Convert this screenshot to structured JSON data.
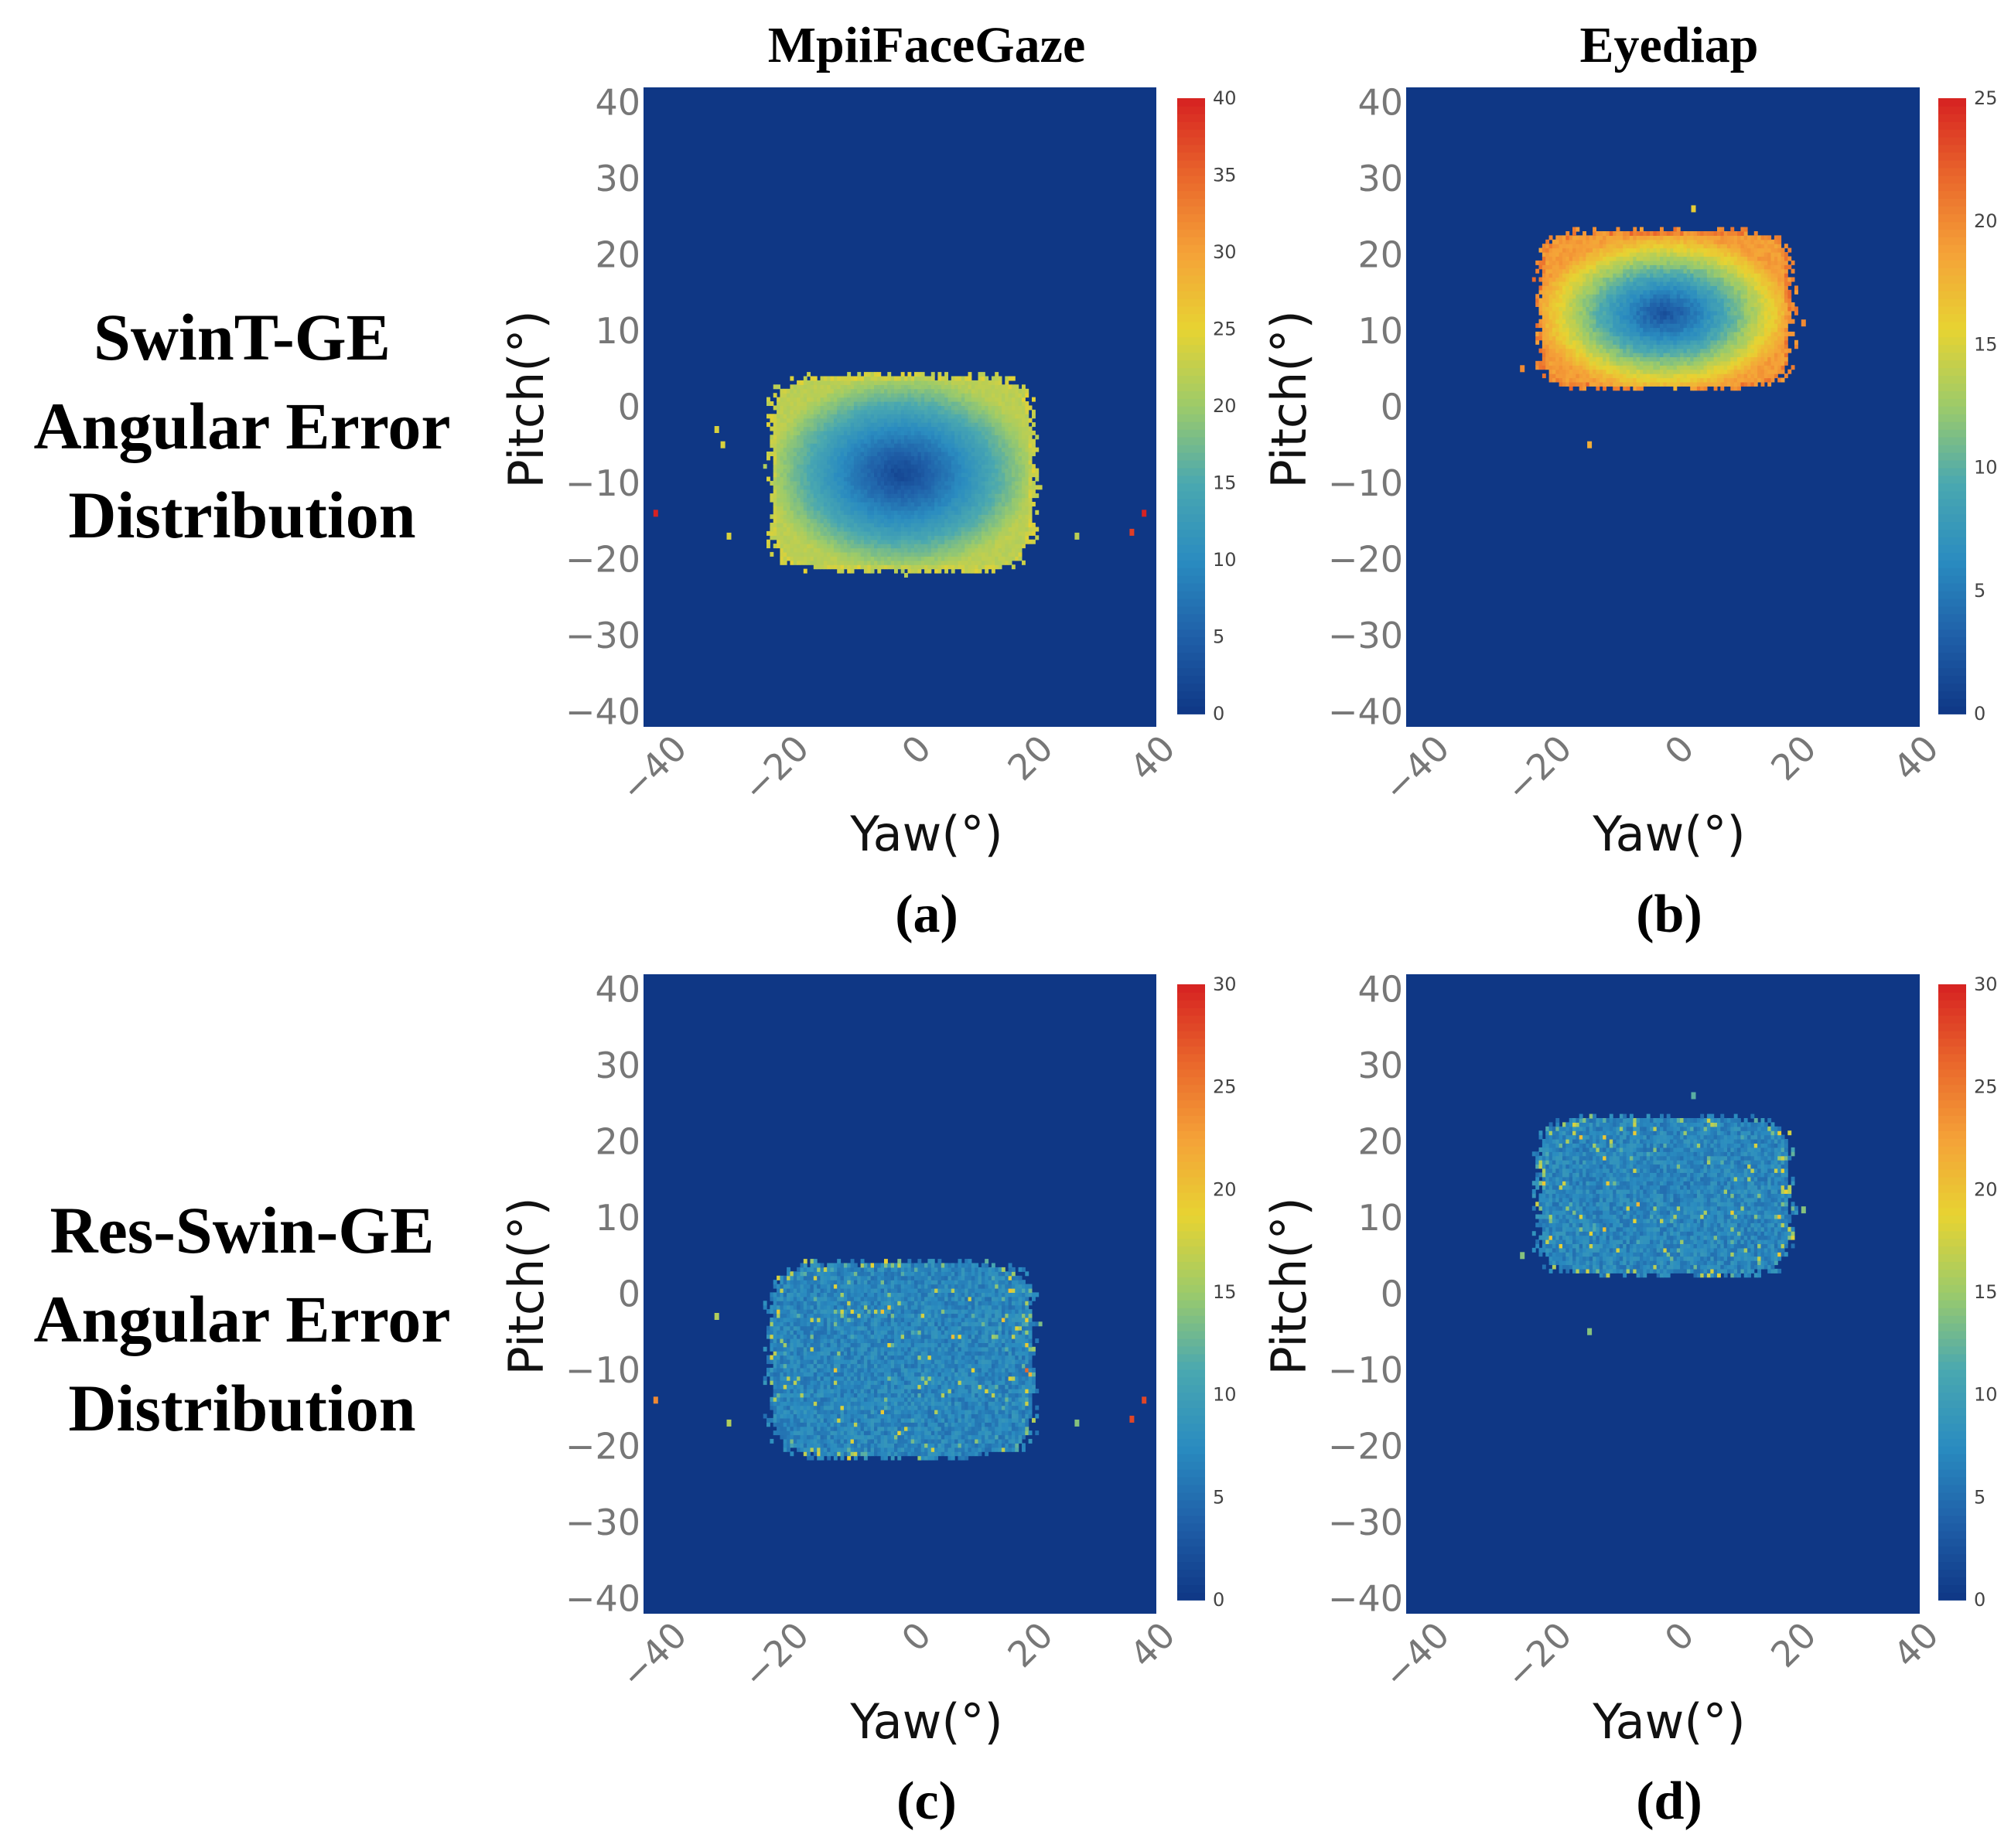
{
  "figure": {
    "column_titles": [
      "MpiiFaceGaze",
      "Eyediap"
    ],
    "row_labels": [
      [
        "SwinT-GE",
        "Angular Error",
        "Distribution"
      ],
      [
        "Res-Swin-GE",
        "Angular Error",
        "Distribution"
      ]
    ]
  },
  "colors": {
    "background": "#0f3785",
    "colorscale": [
      "#0f3785",
      "#1f5fa8",
      "#2a8cc0",
      "#4aa8b0",
      "#9ccb6a",
      "#e7d332",
      "#f5a238",
      "#e9662b",
      "#d62222"
    ]
  },
  "chart_data": [
    {
      "type": "heatmap",
      "panel_label": "(a)",
      "dataset": "MpiiFaceGaze",
      "model": "SwinT-GE",
      "xlabel": "Yaw(°)",
      "ylabel": "Pitch(°)",
      "xlim": [
        -42,
        42
      ],
      "ylim": [
        -42,
        42
      ],
      "xticks": [
        -40,
        -20,
        0,
        20,
        40
      ],
      "yticks": [
        -40,
        -30,
        -20,
        -10,
        0,
        10,
        20,
        30,
        40
      ],
      "colorbar": {
        "min": 0,
        "max": 40,
        "ticks": [
          0,
          5,
          10,
          15,
          20,
          25,
          30,
          35,
          40
        ]
      },
      "region": {
        "x_range": [
          -22,
          22
        ],
        "y_range": [
          -22,
          4
        ],
        "center": [
          0,
          -9
        ],
        "center_value": 2,
        "edge_value": 22,
        "pattern": "radial"
      },
      "outliers": [
        {
          "x": -40,
          "y": -14,
          "value": 40
        },
        {
          "x": 38,
          "y": -16.5,
          "value": 38
        },
        {
          "x": 40,
          "y": -14,
          "value": 40
        },
        {
          "x": -30,
          "y": -3,
          "value": 24
        },
        {
          "x": -29,
          "y": -5,
          "value": 24
        },
        {
          "x": -28,
          "y": -17,
          "value": 24
        },
        {
          "x": 29,
          "y": -17,
          "value": 22
        }
      ]
    },
    {
      "type": "heatmap",
      "panel_label": "(b)",
      "dataset": "Eyediap",
      "model": "SwinT-GE",
      "xlabel": "Yaw(°)",
      "ylabel": "Pitch(°)",
      "xlim": [
        -42,
        42
      ],
      "ylim": [
        -42,
        42
      ],
      "xticks": [
        -40,
        -20,
        0,
        20,
        40
      ],
      "yticks": [
        -40,
        -30,
        -20,
        -10,
        0,
        10,
        20,
        30,
        40
      ],
      "colorbar": {
        "min": 0,
        "max": 25,
        "ticks": [
          0,
          5,
          10,
          15,
          20,
          25
        ]
      },
      "region": {
        "x_range": [
          -21,
          21
        ],
        "y_range": [
          2,
          23
        ],
        "center": [
          0,
          12
        ],
        "center_value": 2,
        "edge_value": 19,
        "pattern": "radial"
      },
      "outliers": [
        {
          "x": -12,
          "y": -5,
          "value": 18
        },
        {
          "x": 5,
          "y": 26,
          "value": 16
        },
        {
          "x": 23,
          "y": 11,
          "value": 20
        },
        {
          "x": -23,
          "y": 5,
          "value": 20
        }
      ]
    },
    {
      "type": "heatmap",
      "panel_label": "(c)",
      "dataset": "MpiiFaceGaze",
      "model": "Res-Swin-GE",
      "xlabel": "Yaw(°)",
      "ylabel": "Pitch(°)",
      "xlim": [
        -42,
        42
      ],
      "ylim": [
        -42,
        42
      ],
      "xticks": [
        -40,
        -20,
        0,
        20,
        40
      ],
      "yticks": [
        -40,
        -30,
        -20,
        -10,
        0,
        10,
        20,
        30,
        40
      ],
      "colorbar": {
        "min": 0,
        "max": 30,
        "ticks": [
          0,
          5,
          10,
          15,
          20,
          25,
          30
        ]
      },
      "region": {
        "x_range": [
          -22,
          22
        ],
        "y_range": [
          -22,
          4
        ],
        "center": [
          0,
          -9
        ],
        "center_value": 7,
        "edge_value": 9,
        "pattern": "noise"
      },
      "outliers": [
        {
          "x": -40,
          "y": -14,
          "value": 24
        },
        {
          "x": 38,
          "y": -16.5,
          "value": 28
        },
        {
          "x": 40,
          "y": -14,
          "value": 28
        },
        {
          "x": -30,
          "y": -3,
          "value": 16
        },
        {
          "x": -28,
          "y": -17,
          "value": 16
        },
        {
          "x": 29,
          "y": -17,
          "value": 14
        }
      ]
    },
    {
      "type": "heatmap",
      "panel_label": "(d)",
      "dataset": "Eyediap",
      "model": "Res-Swin-GE",
      "xlabel": "Yaw(°)",
      "ylabel": "Pitch(°)",
      "xlim": [
        -42,
        42
      ],
      "ylim": [
        -42,
        42
      ],
      "xticks": [
        -40,
        -20,
        0,
        20,
        40
      ],
      "yticks": [
        -40,
        -30,
        -20,
        -10,
        0,
        10,
        20,
        30,
        40
      ],
      "colorbar": {
        "min": 0,
        "max": 30,
        "ticks": [
          0,
          5,
          10,
          15,
          20,
          25,
          30
        ]
      },
      "region": {
        "x_range": [
          -21,
          21
        ],
        "y_range": [
          2,
          23
        ],
        "center": [
          0,
          12
        ],
        "center_value": 7,
        "edge_value": 9,
        "pattern": "noise"
      },
      "outliers": [
        {
          "x": -12,
          "y": -5,
          "value": 14
        },
        {
          "x": 5,
          "y": 26,
          "value": 12
        },
        {
          "x": 23,
          "y": 11,
          "value": 14
        },
        {
          "x": -23,
          "y": 5,
          "value": 14
        }
      ]
    }
  ]
}
